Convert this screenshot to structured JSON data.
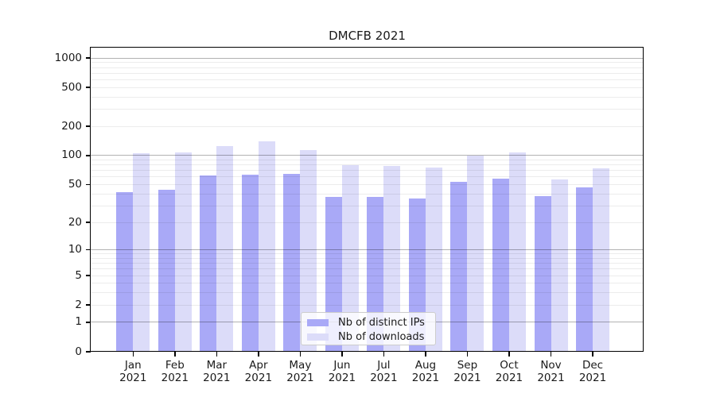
{
  "title": "DMCFB 2021",
  "chart_data": {
    "type": "bar",
    "title": "DMCFB 2021",
    "categories": [
      "Jan",
      "Feb",
      "Mar",
      "Apr",
      "May",
      "Jun",
      "Jul",
      "Aug",
      "Sep",
      "Oct",
      "Nov",
      "Dec"
    ],
    "year_label": "2021",
    "series": [
      {
        "name": "Nb of distinct IPs",
        "color": "#a9a9f7",
        "values": [
          42,
          44,
          62,
          64,
          65,
          37,
          37,
          36,
          54,
          58,
          38,
          47
        ]
      },
      {
        "name": "Nb of downloads",
        "color": "#dcdcf9",
        "values": [
          105,
          108,
          126,
          139,
          115,
          80,
          78,
          75,
          100,
          108,
          57,
          74
        ]
      }
    ],
    "yscale": "log1p",
    "ylim": [
      0,
      1280
    ],
    "yticks": [
      1000,
      500,
      200,
      100,
      50,
      20,
      10,
      5,
      2,
      1,
      0
    ],
    "minor_gridlines": [
      2,
      3,
      4,
      5,
      6,
      7,
      8,
      9,
      20,
      30,
      40,
      50,
      60,
      70,
      80,
      90,
      200,
      300,
      400,
      500,
      600,
      700,
      800,
      900
    ],
    "major_gridlines": [
      1,
      10,
      100,
      1000
    ],
    "grid": true,
    "legend_position": "lower center",
    "colors": {
      "major_grid": "#b3b3b3",
      "minor_grid": "#ececec",
      "axis": "#000000",
      "text": "#1a1a1a",
      "legend_border": "#cccccc"
    }
  }
}
